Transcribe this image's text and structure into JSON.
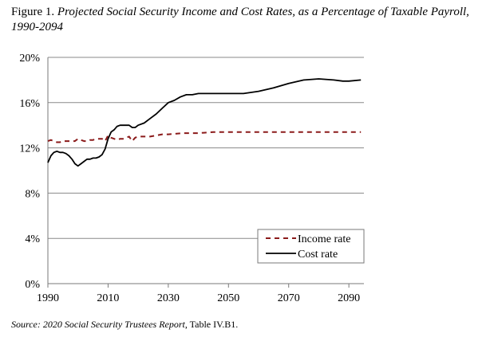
{
  "figure": {
    "label": "Figure 1.",
    "title": "Projected Social Security Income and Cost Rates, as a Percentage of Taxable Payroll, 1990-2094"
  },
  "source": {
    "prefix": "Source: 2020 Social Security Trustees Report",
    "suffix": ", Table IV.B1."
  },
  "chart_data": {
    "type": "line",
    "title": "",
    "xlabel": "",
    "ylabel": "",
    "xlim": [
      1990,
      2095
    ],
    "ylim": [
      0,
      20
    ],
    "x_ticks": [
      1990,
      2010,
      2030,
      2050,
      2070,
      2090
    ],
    "y_ticks": [
      0,
      4,
      8,
      12,
      16,
      20
    ],
    "y_tick_labels": [
      "0%",
      "4%",
      "8%",
      "12%",
      "16%",
      "20%"
    ],
    "grid": "horizontal",
    "legend_position": "bottom-right",
    "series": [
      {
        "name": "Income rate",
        "style": "dashed",
        "color": "#8b1a1a",
        "points": [
          [
            1990,
            12.6
          ],
          [
            1991,
            12.7
          ],
          [
            1992,
            12.6
          ],
          [
            1993,
            12.5
          ],
          [
            1994,
            12.5
          ],
          [
            1995,
            12.6
          ],
          [
            1996,
            12.6
          ],
          [
            1997,
            12.6
          ],
          [
            1998,
            12.6
          ],
          [
            1999,
            12.6
          ],
          [
            2000,
            12.8
          ],
          [
            2001,
            12.7
          ],
          [
            2002,
            12.6
          ],
          [
            2003,
            12.6
          ],
          [
            2004,
            12.7
          ],
          [
            2005,
            12.7
          ],
          [
            2006,
            12.8
          ],
          [
            2007,
            12.8
          ],
          [
            2008,
            12.8
          ],
          [
            2009,
            12.6
          ],
          [
            2010,
            13.1
          ],
          [
            2011,
            12.9
          ],
          [
            2012,
            12.8
          ],
          [
            2013,
            12.7
          ],
          [
            2014,
            12.8
          ],
          [
            2015,
            12.8
          ],
          [
            2016,
            12.9
          ],
          [
            2017,
            13.0
          ],
          [
            2018,
            12.6
          ],
          [
            2019,
            12.9
          ],
          [
            2020,
            13.0
          ],
          [
            2022,
            13.0
          ],
          [
            2024,
            13.0
          ],
          [
            2026,
            13.1
          ],
          [
            2028,
            13.2
          ],
          [
            2030,
            13.2
          ],
          [
            2035,
            13.3
          ],
          [
            2040,
            13.3
          ],
          [
            2045,
            13.4
          ],
          [
            2050,
            13.4
          ],
          [
            2055,
            13.4
          ],
          [
            2060,
            13.4
          ],
          [
            2065,
            13.4
          ],
          [
            2070,
            13.4
          ],
          [
            2075,
            13.4
          ],
          [
            2080,
            13.4
          ],
          [
            2085,
            13.4
          ],
          [
            2090,
            13.4
          ],
          [
            2094,
            13.4
          ]
        ]
      },
      {
        "name": "Cost rate",
        "style": "solid",
        "color": "#000000",
        "points": [
          [
            1990,
            10.7
          ],
          [
            1991,
            11.3
          ],
          [
            1992,
            11.6
          ],
          [
            1993,
            11.7
          ],
          [
            1994,
            11.6
          ],
          [
            1995,
            11.6
          ],
          [
            1996,
            11.5
          ],
          [
            1997,
            11.3
          ],
          [
            1998,
            11.0
          ],
          [
            1999,
            10.6
          ],
          [
            2000,
            10.4
          ],
          [
            2001,
            10.6
          ],
          [
            2002,
            10.8
          ],
          [
            2003,
            11.0
          ],
          [
            2004,
            11.0
          ],
          [
            2005,
            11.1
          ],
          [
            2006,
            11.1
          ],
          [
            2007,
            11.2
          ],
          [
            2008,
            11.4
          ],
          [
            2009,
            11.9
          ],
          [
            2010,
            12.8
          ],
          [
            2011,
            13.4
          ],
          [
            2012,
            13.6
          ],
          [
            2013,
            13.9
          ],
          [
            2014,
            14.0
          ],
          [
            2015,
            14.0
          ],
          [
            2016,
            14.0
          ],
          [
            2017,
            14.0
          ],
          [
            2018,
            13.8
          ],
          [
            2019,
            13.8
          ],
          [
            2020,
            14.0
          ],
          [
            2022,
            14.2
          ],
          [
            2024,
            14.6
          ],
          [
            2026,
            15.0
          ],
          [
            2028,
            15.5
          ],
          [
            2030,
            16.0
          ],
          [
            2032,
            16.2
          ],
          [
            2034,
            16.5
          ],
          [
            2036,
            16.7
          ],
          [
            2038,
            16.7
          ],
          [
            2040,
            16.8
          ],
          [
            2045,
            16.8
          ],
          [
            2050,
            16.8
          ],
          [
            2055,
            16.8
          ],
          [
            2060,
            17.0
          ],
          [
            2065,
            17.3
          ],
          [
            2070,
            17.7
          ],
          [
            2075,
            18.0
          ],
          [
            2080,
            18.1
          ],
          [
            2085,
            18.0
          ],
          [
            2088,
            17.9
          ],
          [
            2090,
            17.9
          ],
          [
            2094,
            18.0
          ]
        ]
      }
    ]
  }
}
